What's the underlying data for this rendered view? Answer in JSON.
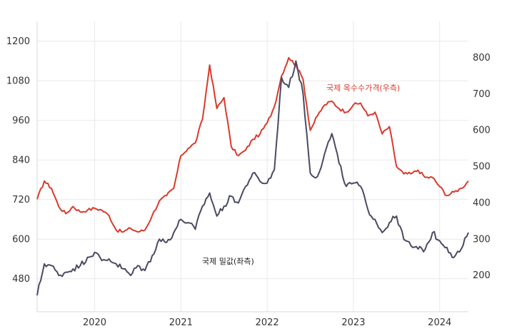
{
  "chart_data": {
    "type": "line",
    "title": "",
    "xlabel": "",
    "x_ticks": [
      "2020",
      "2021",
      "2022",
      "2023",
      "2024"
    ],
    "y_left": {
      "ticks": [
        480,
        600,
        720,
        840,
        960,
        1080,
        1200
      ],
      "range": [
        380,
        1260
      ]
    },
    "y_right": {
      "ticks": [
        200,
        300,
        400,
        500,
        600,
        700,
        800
      ],
      "range": [
        100,
        900
      ]
    },
    "grid": true,
    "series": [
      {
        "name": "국제 옥수수가격(우측)",
        "axis": "right",
        "color": "#d93a2b",
        "points": [
          [
            "2019-05",
            410
          ],
          [
            "2019-06",
            460
          ],
          [
            "2019-07",
            440
          ],
          [
            "2019-08",
            390
          ],
          [
            "2019-09",
            370
          ],
          [
            "2019-10",
            390
          ],
          [
            "2019-11",
            375
          ],
          [
            "2019-12",
            380
          ],
          [
            "2020-01",
            385
          ],
          [
            "2020-02",
            380
          ],
          [
            "2020-03",
            365
          ],
          [
            "2020-04",
            325
          ],
          [
            "2020-05",
            320
          ],
          [
            "2020-06",
            330
          ],
          [
            "2020-07",
            320
          ],
          [
            "2020-08",
            325
          ],
          [
            "2020-09",
            365
          ],
          [
            "2020-10",
            405
          ],
          [
            "2020-11",
            420
          ],
          [
            "2020-12",
            440
          ],
          [
            "2021-01",
            530
          ],
          [
            "2021-02",
            550
          ],
          [
            "2021-03",
            565
          ],
          [
            "2021-04",
            630
          ],
          [
            "2021-05",
            780
          ],
          [
            "2021-06",
            660
          ],
          [
            "2021-07",
            690
          ],
          [
            "2021-08",
            555
          ],
          [
            "2021-09",
            530
          ],
          [
            "2021-10",
            545
          ],
          [
            "2021-11",
            575
          ],
          [
            "2021-12",
            590
          ],
          [
            "2022-01",
            620
          ],
          [
            "2022-02",
            665
          ],
          [
            "2022-03",
            750
          ],
          [
            "2022-04",
            800
          ],
          [
            "2022-05",
            780
          ],
          [
            "2022-06",
            740
          ],
          [
            "2022-07",
            600
          ],
          [
            "2022-08",
            640
          ],
          [
            "2022-09",
            670
          ],
          [
            "2022-10",
            680
          ],
          [
            "2022-11",
            660
          ],
          [
            "2022-12",
            650
          ],
          [
            "2023-01",
            670
          ],
          [
            "2023-02",
            675
          ],
          [
            "2023-03",
            640
          ],
          [
            "2023-04",
            650
          ],
          [
            "2023-05",
            590
          ],
          [
            "2023-06",
            610
          ],
          [
            "2023-07",
            500
          ],
          [
            "2023-08",
            480
          ],
          [
            "2023-09",
            480
          ],
          [
            "2023-10",
            490
          ],
          [
            "2023-11",
            470
          ],
          [
            "2023-12",
            470
          ],
          [
            "2024-01",
            445
          ],
          [
            "2024-02",
            420
          ],
          [
            "2024-03",
            430
          ],
          [
            "2024-04",
            440
          ],
          [
            "2024-05",
            460
          ]
        ]
      },
      {
        "name": "국제 밀값(좌측)",
        "axis": "left",
        "color": "#4a4a63",
        "points": [
          [
            "2019-05",
            430
          ],
          [
            "2019-06",
            525
          ],
          [
            "2019-07",
            520
          ],
          [
            "2019-08",
            490
          ],
          [
            "2019-09",
            500
          ],
          [
            "2019-10",
            510
          ],
          [
            "2019-11",
            520
          ],
          [
            "2019-12",
            545
          ],
          [
            "2020-01",
            560
          ],
          [
            "2020-02",
            535
          ],
          [
            "2020-03",
            540
          ],
          [
            "2020-04",
            525
          ],
          [
            "2020-05",
            510
          ],
          [
            "2020-06",
            490
          ],
          [
            "2020-07",
            520
          ],
          [
            "2020-08",
            505
          ],
          [
            "2020-09",
            550
          ],
          [
            "2020-10",
            600
          ],
          [
            "2020-11",
            590
          ],
          [
            "2020-12",
            620
          ],
          [
            "2021-01",
            660
          ],
          [
            "2021-02",
            650
          ],
          [
            "2021-03",
            630
          ],
          [
            "2021-04",
            700
          ],
          [
            "2021-05",
            740
          ],
          [
            "2021-06",
            670
          ],
          [
            "2021-07",
            700
          ],
          [
            "2021-08",
            730
          ],
          [
            "2021-09",
            710
          ],
          [
            "2021-10",
            760
          ],
          [
            "2021-11",
            800
          ],
          [
            "2021-12",
            775
          ],
          [
            "2022-01",
            770
          ],
          [
            "2022-02",
            810
          ],
          [
            "2022-03",
            1090
          ],
          [
            "2022-04",
            1060
          ],
          [
            "2022-05",
            1140
          ],
          [
            "2022-06",
            1040
          ],
          [
            "2022-07",
            800
          ],
          [
            "2022-08",
            790
          ],
          [
            "2022-09",
            860
          ],
          [
            "2022-10",
            920
          ],
          [
            "2022-11",
            830
          ],
          [
            "2022-12",
            760
          ],
          [
            "2023-01",
            770
          ],
          [
            "2023-02",
            760
          ],
          [
            "2023-03",
            690
          ],
          [
            "2023-04",
            660
          ],
          [
            "2023-05",
            620
          ],
          [
            "2023-06",
            650
          ],
          [
            "2023-07",
            670
          ],
          [
            "2023-08",
            600
          ],
          [
            "2023-09",
            580
          ],
          [
            "2023-10",
            570
          ],
          [
            "2023-11",
            570
          ],
          [
            "2023-12",
            620
          ],
          [
            "2024-01",
            595
          ],
          [
            "2024-02",
            575
          ],
          [
            "2024-03",
            545
          ],
          [
            "2024-04",
            570
          ],
          [
            "2024-05",
            620
          ]
        ]
      }
    ]
  }
}
